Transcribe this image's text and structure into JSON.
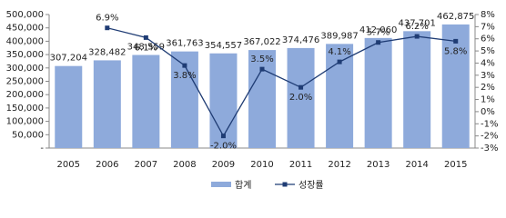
{
  "chart_data": {
    "type": "bar-line",
    "categories": [
      "2005",
      "2006",
      "2007",
      "2008",
      "2009",
      "2010",
      "2011",
      "2012",
      "2013",
      "2014",
      "2015"
    ],
    "series": [
      {
        "name": "합계",
        "type": "bar",
        "color": "#8eaadb",
        "values": [
          307204,
          328482,
          348559,
          361763,
          354557,
          367022,
          374476,
          389987,
          412060,
          437701,
          462875
        ],
        "value_labels": [
          "307,204",
          "328,482",
          "348,559",
          "361,763",
          "354,557",
          "367,022",
          "374,476",
          "389,987",
          "412,060",
          "437,701",
          "462,875"
        ]
      },
      {
        "name": "성장률",
        "type": "line",
        "axis": "y2",
        "color": "#1f3c74",
        "values": [
          null,
          6.9,
          6.1,
          3.8,
          -2.0,
          3.5,
          2.0,
          4.1,
          5.7,
          6.2,
          5.8
        ],
        "value_labels": [
          null,
          "6.9%",
          "6.1%",
          "3.8%",
          "-2.0%",
          "3.5%",
          "2.0%",
          "4.1%",
          "5.7%",
          "6.2%",
          "5.8%"
        ]
      }
    ],
    "ylim": [
      0,
      500000
    ],
    "yticks": [
      {
        "value": 0,
        "label": "-"
      },
      {
        "value": 50000,
        "label": "50,000"
      },
      {
        "value": 100000,
        "label": "100,000"
      },
      {
        "value": 150000,
        "label": "150,000"
      },
      {
        "value": 200000,
        "label": "200,000"
      },
      {
        "value": 250000,
        "label": "250,000"
      },
      {
        "value": 300000,
        "label": "300,000"
      },
      {
        "value": 350000,
        "label": "350,000"
      },
      {
        "value": 400000,
        "label": "400,000"
      },
      {
        "value": 450000,
        "label": "450,000"
      },
      {
        "value": 500000,
        "label": "500,000"
      }
    ],
    "y2lim": [
      -3,
      8
    ],
    "y2ticks": [
      {
        "value": -3,
        "label": "-3%"
      },
      {
        "value": -2,
        "label": "-2%"
      },
      {
        "value": -1,
        "label": "-1%"
      },
      {
        "value": 0,
        "label": "0%"
      },
      {
        "value": 1,
        "label": "1%"
      },
      {
        "value": 2,
        "label": "2%"
      },
      {
        "value": 3,
        "label": "3%"
      },
      {
        "value": 4,
        "label": "4%"
      },
      {
        "value": 5,
        "label": "5%"
      },
      {
        "value": 6,
        "label": "6%"
      },
      {
        "value": 7,
        "label": "7%"
      },
      {
        "value": 8,
        "label": "8%"
      }
    ],
    "legend": "bottom"
  }
}
